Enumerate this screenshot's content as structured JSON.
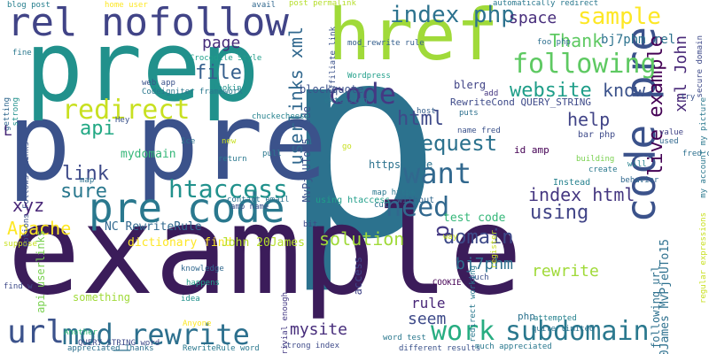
{
  "words": [
    {
      "text": "p",
      "color": "#2c728e",
      "vertical": false
    },
    {
      "text": "example",
      "color": "#3b1c5a",
      "vertical": false
    },
    {
      "text": "p pre",
      "color": "#3b528b",
      "vertical": false
    },
    {
      "text": "prep",
      "color": "#21918c",
      "vertical": false
    },
    {
      "text": "href",
      "color": "#a0da39",
      "vertical": false
    },
    {
      "text": "rel nofollow",
      "color": "#414487",
      "vertical": false
    },
    {
      "text": "pre code",
      "color": "#2a788e",
      "vertical": false
    },
    {
      "text": "code pre",
      "color": "#3b528b",
      "vertical": true
    },
    {
      "text": "url",
      "color": "#3b528b",
      "vertical": false
    },
    {
      "text": "mod_rewrite",
      "color": "#2d708e",
      "vertical": false
    },
    {
      "text": "live example",
      "color": "#440154",
      "vertical": true
    },
    {
      "text": "subdomain",
      "color": "#2a788e",
      "vertical": false
    },
    {
      "text": "work",
      "color": "#27ad81",
      "vertical": false
    },
    {
      "text": "want",
      "color": "#31688e",
      "vertical": false
    },
    {
      "text": "need",
      "color": "#31688e",
      "vertical": false
    },
    {
      "text": "code",
      "color": "#443983",
      "vertical": false
    },
    {
      "text": "following",
      "color": "#5ec962",
      "vertical": false
    },
    {
      "text": "sample",
      "color": "#fde725",
      "vertical": false
    },
    {
      "text": "website",
      "color": "#1f9e89",
      "vertical": false
    },
    {
      "text": "htaccess",
      "color": "#21918c",
      "vertical": false
    },
    {
      "text": "redirect",
      "color": "#c8e020",
      "vertical": false
    },
    {
      "text": "index php",
      "color": "#2c728e",
      "vertical": false
    },
    {
      "text": "request",
      "color": "#2c728e",
      "vertical": false
    },
    {
      "text": "using",
      "color": "#414487",
      "vertical": false
    },
    {
      "text": "solution",
      "color": "#a0da39",
      "vertical": false
    },
    {
      "text": "Apache",
      "color": "#fde725",
      "vertical": false
    },
    {
      "text": "link",
      "color": "#3e4a89",
      "vertical": false
    },
    {
      "text": "sure",
      "color": "#2a788e",
      "vertical": false
    },
    {
      "text": "xyz",
      "color": "#482677",
      "vertical": false
    },
    {
      "text": "api",
      "color": "#22a884",
      "vertical": false
    },
    {
      "text": "file",
      "color": "#355f8d",
      "vertical": false
    },
    {
      "text": "domain",
      "color": "#3e4a89",
      "vertical": false
    },
    {
      "text": "index html",
      "color": "#453781",
      "vertical": false
    },
    {
      "text": "rewrite",
      "color": "#a0da39",
      "vertical": false
    },
    {
      "text": "html",
      "color": "#3e4a89",
      "vertical": false
    },
    {
      "text": "help",
      "color": "#414487",
      "vertical": false
    },
    {
      "text": "know",
      "color": "#3b528b",
      "vertical": false
    },
    {
      "text": "space",
      "color": "#472d7b",
      "vertical": false
    },
    {
      "text": "Thank",
      "color": "#5ec962",
      "vertical": false
    },
    {
      "text": "page",
      "color": "#472d7b",
      "vertical": false
    },
    {
      "text": "userlinks xml",
      "color": "#31688e",
      "vertical": true
    },
    {
      "text": "seem",
      "color": "#3e4a89",
      "vertical": false
    },
    {
      "text": "mysite",
      "color": "#472d7b",
      "vertical": false
    },
    {
      "text": "bj7phm",
      "color": "#2d708e",
      "vertical": false
    },
    {
      "text": "bj7phm rel",
      "color": "#2c728e",
      "vertical": false
    },
    {
      "text": "xml John",
      "color": "#482878",
      "vertical": true
    },
    {
      "text": "p",
      "color": "#443983",
      "vertical": true
    },
    {
      "text": "test code",
      "color": "#35b779",
      "vertical": false
    },
    {
      "text": "rule",
      "color": "#482677",
      "vertical": false
    },
    {
      "text": "dictionary find",
      "color": "#fde725",
      "vertical": false
    },
    {
      "text": "John 20James",
      "color": "#b5de2b",
      "vertical": false
    },
    {
      "text": "mydomain",
      "color": "#35b779",
      "vertical": false
    },
    {
      "text": "RewriteCond QUERY_STRING",
      "color": "#3e4a89",
      "vertical": false
    },
    {
      "text": "https live",
      "color": "#2c728e",
      "vertical": false
    },
    {
      "text": "blockquote",
      "color": "#3b528b",
      "vertical": false
    },
    {
      "text": "blerg",
      "color": "#414487",
      "vertical": false
    },
    {
      "text": "NC RewriteRule",
      "color": "#31688e",
      "vertical": false
    },
    {
      "text": "Crocodile Style",
      "color": "#1f9e89",
      "vertical": false
    },
    {
      "text": "home user",
      "color": "#fde725",
      "vertical": false
    },
    {
      "text": "blog post",
      "color": "#277f8e",
      "vertical": false
    },
    {
      "text": "post permalink",
      "color": "#b5de2b",
      "vertical": false
    },
    {
      "text": "automatically redirect",
      "color": "#2a788e",
      "vertical": false
    },
    {
      "text": "mod_rewrite rule",
      "color": "#355f8d",
      "vertical": false
    },
    {
      "text": "20James MvPjeUTo15",
      "color": "#2d708e",
      "vertical": true
    },
    {
      "text": "MvPjeUTo15 code",
      "color": "#3b528b",
      "vertical": true
    },
    {
      "text": "api userlinks",
      "color": "#7ad151",
      "vertical": true
    },
    {
      "text": "Wordpress",
      "color": "#1f9e89",
      "vertical": false
    },
    {
      "text": "contact email",
      "color": "#2c728e",
      "vertical": false
    },
    {
      "text": "amp name",
      "color": "#3b528b",
      "vertical": false
    },
    {
      "text": "using htaccess",
      "color": "#1f9e89",
      "vertical": false
    },
    {
      "text": "without",
      "color": "#31688e",
      "vertical": false
    },
    {
      "text": "Instead",
      "color": "#26828e",
      "vertical": false
    },
    {
      "text": "fred code",
      "color": "#2d708e",
      "vertical": false
    },
    {
      "text": "bar php",
      "color": "#3e4a89",
      "vertical": false
    },
    {
      "text": "id amp",
      "color": "#440154",
      "vertical": false
    },
    {
      "text": "name fred",
      "color": "#3b528b",
      "vertical": false
    },
    {
      "text": "access",
      "color": "#414487",
      "vertical": true
    },
    {
      "text": "COOKIE",
      "color": "#440154",
      "vertical": false
    },
    {
      "text": "quite limited",
      "color": "#2c728e",
      "vertical": false
    },
    {
      "text": "word test",
      "color": "#2a788e",
      "vertical": false
    },
    {
      "text": "strong index",
      "color": "#3e4a89",
      "vertical": false
    },
    {
      "text": "something",
      "color": "#a0da39",
      "vertical": false
    },
    {
      "text": "knowledge",
      "color": "#31688e",
      "vertical": false
    },
    {
      "text": "happens",
      "color": "#1f9e89",
      "vertical": false
    },
    {
      "text": "idea",
      "color": "#21918c",
      "vertical": false
    },
    {
      "text": "Anyone",
      "color": "#fde725",
      "vertical": false
    },
    {
      "text": "Another",
      "color": "#35b779",
      "vertical": false
    },
    {
      "text": "attempted",
      "color": "#26828e",
      "vertical": false
    },
    {
      "text": "php",
      "color": "#2c728e",
      "vertical": false
    },
    {
      "text": "following url",
      "color": "#2d708e",
      "vertical": true
    },
    {
      "text": "redirect working",
      "color": "#2a788e",
      "vertical": true
    },
    {
      "text": "return",
      "color": "#2a788e",
      "vertical": false
    },
    {
      "text": "new",
      "color": "#c8e020",
      "vertical": false
    },
    {
      "text": "Ice",
      "color": "#2c728e",
      "vertical": false
    },
    {
      "text": "looking",
      "color": "#21918c",
      "vertical": false
    },
    {
      "text": "web app",
      "color": "#3b528b",
      "vertical": false
    },
    {
      "text": "chuckecheese",
      "color": "#26828e",
      "vertical": false
    },
    {
      "text": "extension",
      "color": "#2a788e",
      "vertical": false
    },
    {
      "text": "host",
      "color": "#355f8d",
      "vertical": false
    },
    {
      "text": "puts",
      "color": "#2d708e",
      "vertical": false
    },
    {
      "text": "add",
      "color": "#453781",
      "vertical": false
    },
    {
      "text": "foo php",
      "color": "#2d708e",
      "vertical": false
    },
    {
      "text": "secure domain",
      "color": "#3e4a89",
      "vertical": true
    },
    {
      "text": "try",
      "color": "#3b528b",
      "vertical": false
    },
    {
      "text": "will",
      "color": "#26828e",
      "vertical": false
    },
    {
      "text": "value",
      "color": "#414487",
      "vertical": false
    },
    {
      "text": "used",
      "color": "#31688e",
      "vertical": false
    },
    {
      "text": "building",
      "color": "#7ad151",
      "vertical": false
    },
    {
      "text": "create",
      "color": "#2a788e",
      "vertical": false
    },
    {
      "text": "behavior",
      "color": "#31688e",
      "vertical": false
    },
    {
      "text": "getting",
      "color": "#31688e",
      "vertical": true
    },
    {
      "text": "strong",
      "color": "#21918c",
      "vertical": true
    },
    {
      "text": "fine",
      "color": "#2a788e",
      "vertical": false
    },
    {
      "text": "Hey",
      "color": "#3b528b",
      "vertical": false
    },
    {
      "text": "L",
      "color": "#482878",
      "vertical": false
    },
    {
      "text": "map",
      "color": "#2d708e",
      "vertical": false
    },
    {
      "text": "go",
      "color": "#c8e020",
      "vertical": false
    },
    {
      "text": "pull",
      "color": "#2a788e",
      "vertical": false
    },
    {
      "text": "way",
      "color": "#c8e020",
      "vertical": false
    },
    {
      "text": "bit",
      "color": "#3e4a89",
      "vertical": false
    },
    {
      "text": "suppose",
      "color": "#c8e020",
      "vertical": false
    },
    {
      "text": "find w",
      "color": "#3e4a89",
      "vertical": false
    },
    {
      "text": "much",
      "color": "#3b528b",
      "vertical": false
    },
    {
      "text": "cut",
      "color": "#2c728e",
      "vertical": false
    },
    {
      "text": "avail",
      "color": "#31688e",
      "vertical": false
    },
    {
      "text": "trivial enough",
      "color": "#443983",
      "vertical": true
    },
    {
      "text": "register",
      "color": "#c8e020",
      "vertical": true
    },
    {
      "text": "affiliate link",
      "color": "#3b528b",
      "vertical": true
    },
    {
      "text": "map https",
      "color": "#2a788e",
      "vertical": false
    },
    {
      "text": "appreciated Thanks",
      "color": "#2d708e",
      "vertical": false
    },
    {
      "text": "RewriteRule word",
      "color": "#2a788e",
      "vertical": false
    },
    {
      "text": "different results",
      "color": "#3b528b",
      "vertical": false
    },
    {
      "text": "much appreciated",
      "color": "#2a788e",
      "vertical": false
    },
    {
      "text": "QUERY_STRING word",
      "color": "#3e4a89",
      "vertical": false
    },
    {
      "text": "Codeigniter framework",
      "color": "#2a788e",
      "vertical": false
    },
    {
      "text": "regular expressions",
      "color": "#c8e020",
      "vertical": true
    },
    {
      "text": "my account my picture",
      "color": "#2a788e",
      "vertical": true
    },
    {
      "text": "Options FollowSymLinks",
      "color": "#3b528b",
      "vertical": true
    }
  ]
}
